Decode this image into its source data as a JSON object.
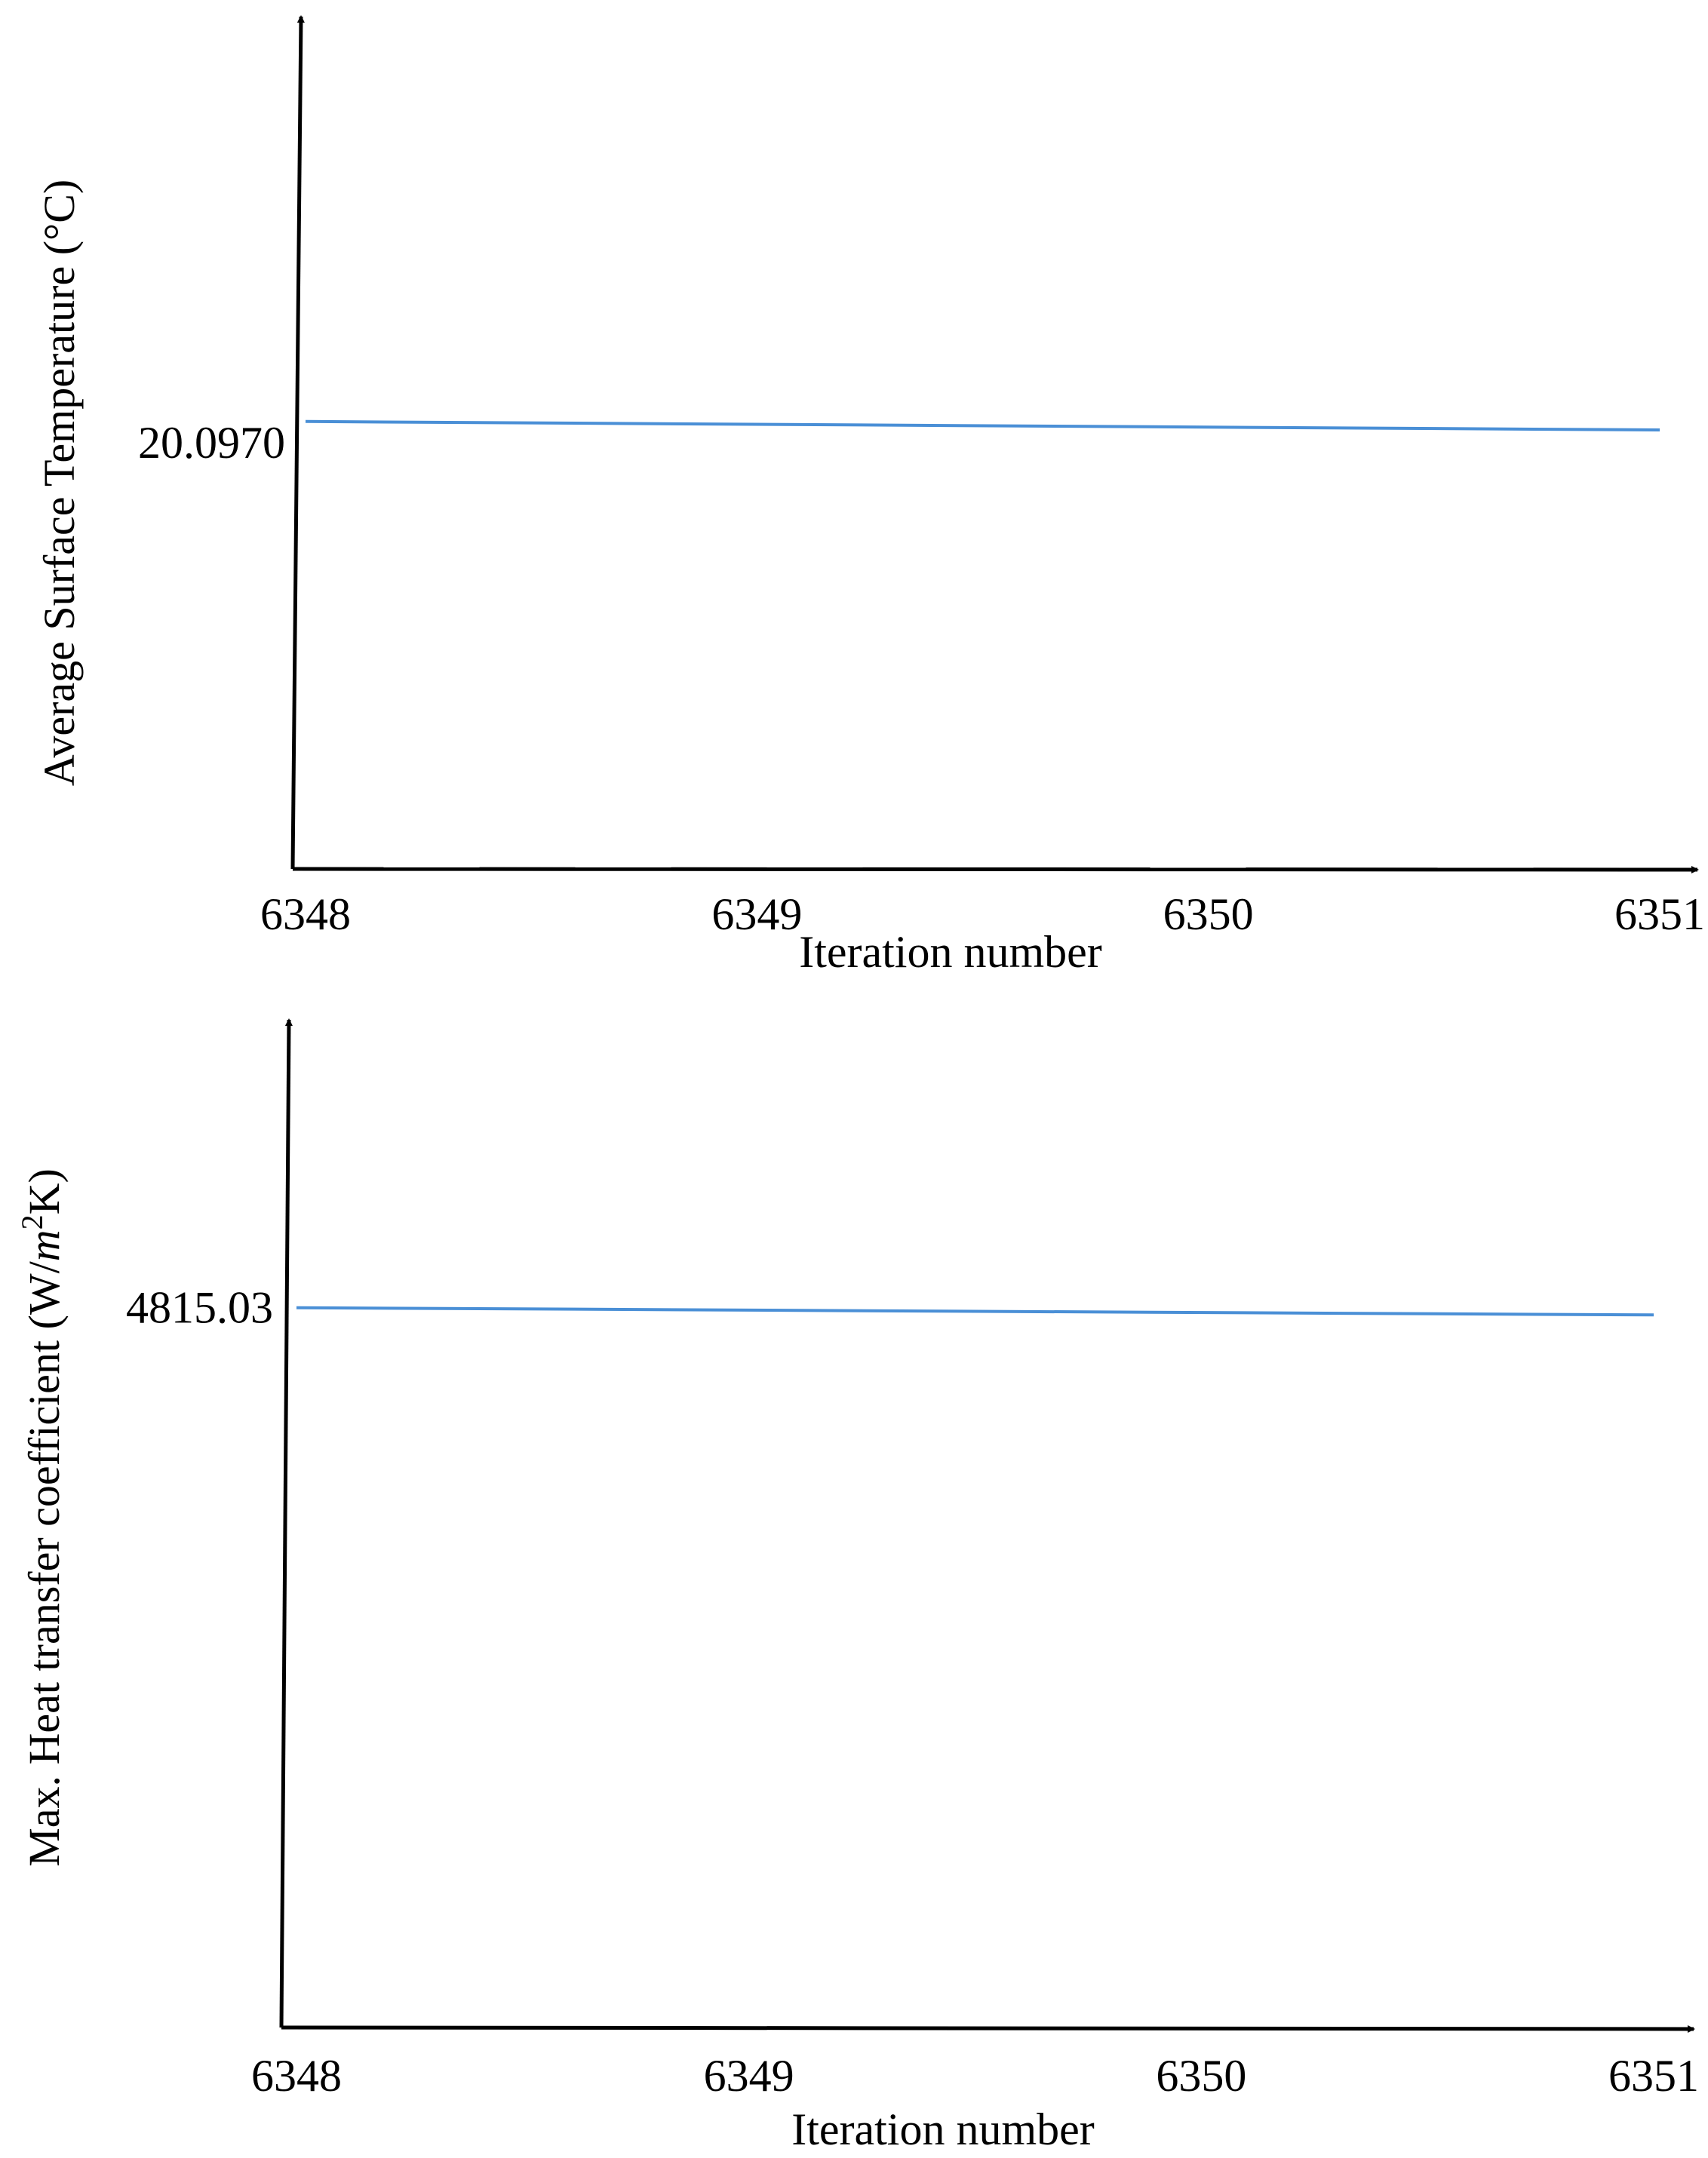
{
  "chart_data": [
    {
      "type": "line",
      "xlabel": "Iteration number",
      "ylabel": "Average Surface Temperature (°C)",
      "x_ticks": [
        6348,
        6349,
        6350,
        6351
      ],
      "y_ticks": [
        20.097
      ],
      "y_tick_labels": [
        "20.0970"
      ],
      "xlim": [
        6348,
        6351
      ],
      "ylim": [
        20.096,
        20.098
      ],
      "grid": false,
      "series": [
        {
          "x": [
            6348,
            6351
          ],
          "y": [
            20.09705,
            20.09703
          ],
          "color": "#4a8fd6"
        }
      ]
    },
    {
      "type": "line",
      "xlabel": "Iteration number",
      "ylabel_main": "Max. Heat transfer coefficient (W/",
      "ylabel_unit_m": "m",
      "ylabel_unit_exp": "2",
      "ylabel_unit_end": "K)",
      "x_ticks": [
        6348,
        6349,
        6350,
        6351
      ],
      "y_ticks": [
        4815.03
      ],
      "y_tick_labels": [
        "4815.03"
      ],
      "xlim": [
        6348,
        6351
      ],
      "ylim": [
        4814.98,
        4815.05
      ],
      "grid": false,
      "series": [
        {
          "x": [
            6348,
            6351
          ],
          "y": [
            4815.03,
            4815.0295
          ],
          "color": "#4a8fd6"
        }
      ]
    }
  ]
}
